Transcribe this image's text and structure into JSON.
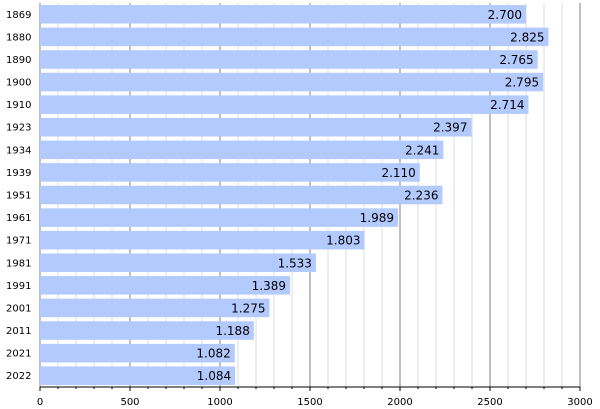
{
  "chart_data": {
    "type": "bar",
    "orientation": "horizontal",
    "categories": [
      "1869",
      "1880",
      "1890",
      "1900",
      "1910",
      "1923",
      "1934",
      "1939",
      "1951",
      "1961",
      "1971",
      "1981",
      "1991",
      "2001",
      "2011",
      "2021",
      "2022"
    ],
    "values": [
      2700,
      2825,
      2765,
      2795,
      2714,
      2397,
      2241,
      2110,
      2236,
      1989,
      1803,
      1533,
      1389,
      1275,
      1188,
      1082,
      1084
    ],
    "value_labels": [
      "2.700",
      "2.825",
      "2.765",
      "2.795",
      "2.714",
      "2.397",
      "2.241",
      "2.110",
      "2.236",
      "1.989",
      "1.803",
      "1.533",
      "1.389",
      "1.275",
      "1.188",
      "1.082",
      "1.084"
    ],
    "xlim": [
      0,
      3000
    ],
    "x_ticks": [
      "0",
      "500",
      "1000",
      "1500",
      "2000",
      "2500",
      "3000"
    ],
    "grid": true,
    "bar_color": "#b3caff",
    "major_grid_color": "#808080",
    "minor_grid_color": "#dddddd"
  }
}
